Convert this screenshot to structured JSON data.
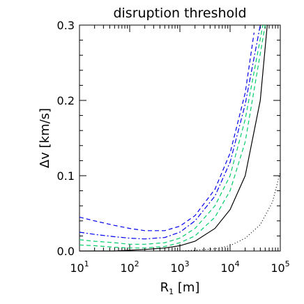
{
  "chart_data": {
    "type": "line",
    "title": "disruption threshold",
    "xlabel": "R",
    "xlabel_sub": "1",
    "xlabel_unit": " [m]",
    "ylabel": "Δv [km/s]",
    "x_scale": "log",
    "xlim": [
      10,
      100000
    ],
    "ylim": [
      0,
      0.3
    ],
    "x_ticks": [
      {
        "value": 10,
        "base": "10",
        "exp": "1"
      },
      {
        "value": 100,
        "base": "10",
        "exp": "2"
      },
      {
        "value": 1000,
        "base": "10",
        "exp": "3"
      },
      {
        "value": 10000,
        "base": "10",
        "exp": "4"
      },
      {
        "value": 100000,
        "base": "10",
        "exp": "5"
      }
    ],
    "y_ticks": [
      {
        "value": 0,
        "label": "0.0"
      },
      {
        "value": 0.1,
        "label": "0.1"
      },
      {
        "value": 0.2,
        "label": "0.2"
      },
      {
        "value": 0.3,
        "label": "0.3"
      }
    ],
    "grid": false,
    "legend": "none",
    "series": [
      {
        "color": "#0000ee",
        "dash": "6,4",
        "x": [
          10,
          20,
          50,
          100,
          200,
          500,
          1000,
          2000,
          5000,
          10000,
          20000,
          30000
        ],
        "y": [
          0.045,
          0.04,
          0.034,
          0.03,
          0.027,
          0.027,
          0.033,
          0.047,
          0.082,
          0.13,
          0.21,
          0.29
        ]
      },
      {
        "color": "#0000ee",
        "dash": "7,3,2,3",
        "x": [
          10,
          20,
          50,
          100,
          200,
          500,
          1000,
          2000,
          5000,
          10000,
          20000,
          40000
        ],
        "y": [
          0.025,
          0.022,
          0.019,
          0.017,
          0.016,
          0.018,
          0.025,
          0.04,
          0.073,
          0.118,
          0.195,
          0.3
        ]
      },
      {
        "color": "#00cc66",
        "dash": "6,4",
        "x": [
          10,
          20,
          50,
          100,
          200,
          500,
          1000,
          2000,
          5000,
          10000,
          20000,
          45000
        ],
        "y": [
          0.015,
          0.013,
          0.011,
          0.009,
          0.009,
          0.011,
          0.017,
          0.03,
          0.06,
          0.1,
          0.175,
          0.3
        ]
      },
      {
        "color": "#00cc66",
        "dash": "6,4",
        "x": [
          10,
          20,
          50,
          100,
          200,
          500,
          1000,
          2000,
          5000,
          10000,
          20000,
          50000
        ],
        "y": [
          0.008,
          0.007,
          0.005,
          0.004,
          0.004,
          0.006,
          0.011,
          0.02,
          0.045,
          0.08,
          0.145,
          0.3
        ]
      },
      {
        "color": "#000000",
        "dash": "",
        "x": [
          10,
          50,
          100,
          200,
          500,
          1000,
          2000,
          5000,
          10000,
          20000,
          40000,
          55000
        ],
        "y": [
          0.0,
          0.0,
          0.001,
          0.002,
          0.004,
          0.007,
          0.013,
          0.03,
          0.055,
          0.1,
          0.2,
          0.3
        ]
      },
      {
        "color": "#000000",
        "dash": "1,3",
        "x": [
          1000,
          2000,
          5000,
          10000,
          20000,
          40000,
          70000,
          100000
        ],
        "y": [
          0.0,
          0.001,
          0.003,
          0.007,
          0.017,
          0.035,
          0.065,
          0.105
        ]
      }
    ]
  }
}
